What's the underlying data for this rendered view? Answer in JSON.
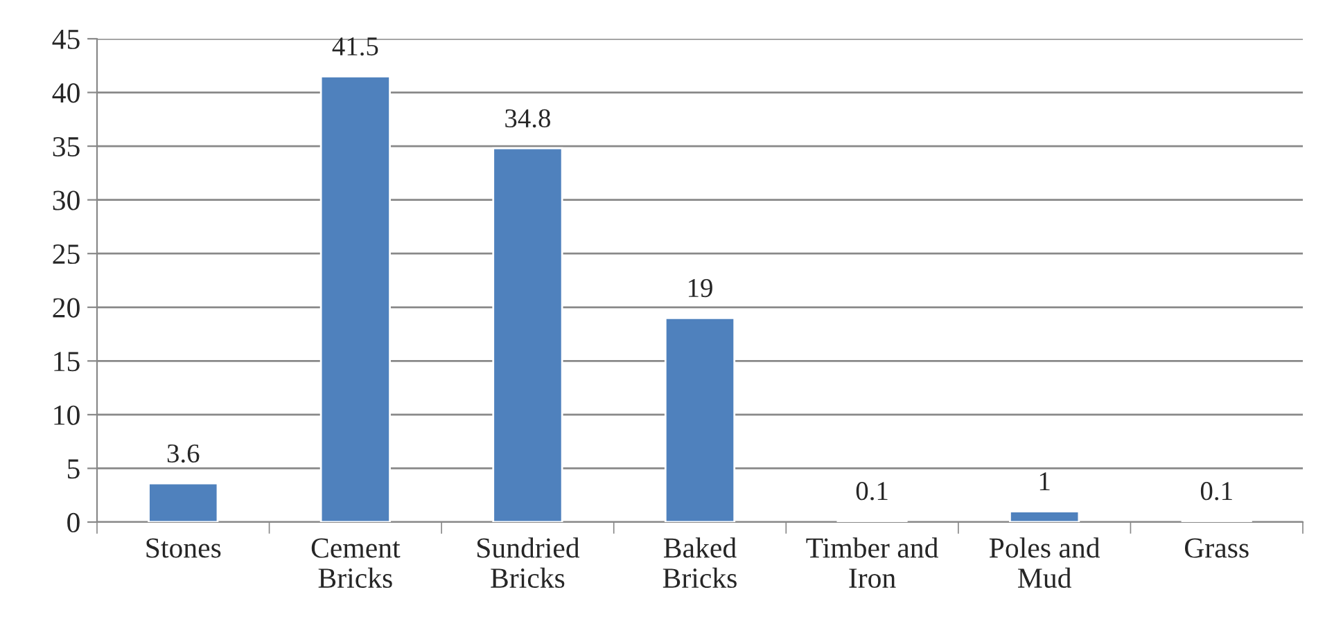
{
  "chart_data": {
    "type": "bar",
    "categories": [
      "Stones",
      "Cement Bricks",
      "Sundried Bricks",
      "Baked Bricks",
      "Timber and Iron",
      "Poles and Mud",
      "Grass"
    ],
    "values": [
      3.6,
      41.5,
      34.8,
      19,
      0.1,
      1,
      0.1
    ],
    "color": "#4f81bd",
    "ylim": [
      0,
      45
    ],
    "yticks": [
      0,
      5,
      10,
      15,
      20,
      25,
      30,
      35,
      40,
      45
    ],
    "grid": "y",
    "data_labels": true
  }
}
